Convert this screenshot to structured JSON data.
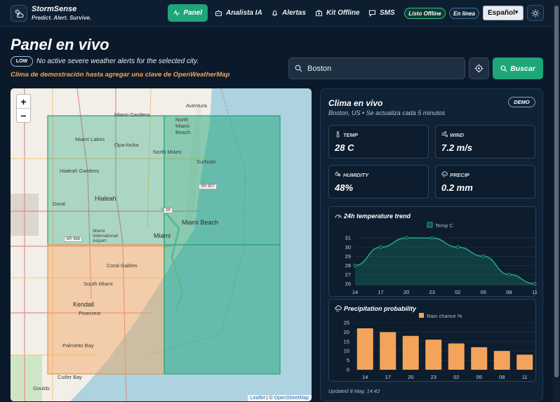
{
  "app": {
    "name": "StormSense",
    "tagline": "Predict. Alert. Survive."
  },
  "nav": {
    "items": [
      {
        "label": "Panel",
        "icon": "pulse-icon",
        "active": true
      },
      {
        "label": "Analista IA",
        "icon": "robot-icon"
      },
      {
        "label": "Alertas",
        "icon": "bell-icon"
      },
      {
        "label": "Kit Offline",
        "icon": "kit-icon"
      },
      {
        "label": "SMS",
        "icon": "message-icon"
      }
    ],
    "status_offline": "Listo Offline",
    "status_online": "En línea",
    "language": "Español"
  },
  "main": {
    "title": "Panel en vivo",
    "alert_level": "LOW",
    "alert_text": "No active severe weather alerts for the selected city.",
    "demo_note": "Clima de demostración hasta agregar una clave de OpenWeatherMap"
  },
  "search": {
    "value": "Boston",
    "button": "Buscar"
  },
  "map": {
    "attribution_leaflet": "Leaflet",
    "attribution_sep": " | © ",
    "attribution_osm": "OpenStreetMap",
    "labels": [
      {
        "text": "Miami Gardens"
      },
      {
        "text": "Aventura"
      },
      {
        "text": "North Miami Beach"
      },
      {
        "text": "Miami Lakes"
      },
      {
        "text": "Opa-locka"
      },
      {
        "text": "North Miami"
      },
      {
        "text": "Surfside"
      },
      {
        "text": "Hialeah Gardens"
      },
      {
        "text": "Hialeah",
        "big": true
      },
      {
        "text": "Doral"
      },
      {
        "text": "Miami Beach",
        "big": true
      },
      {
        "text": "Miami International Airport"
      },
      {
        "text": "Miami",
        "big": true
      },
      {
        "text": "Coral Gables"
      },
      {
        "text": "South Miami"
      },
      {
        "text": "Kendall",
        "big": true
      },
      {
        "text": "Pinecrest"
      },
      {
        "text": "Palmetto Bay"
      },
      {
        "text": "Cutler Bay"
      },
      {
        "text": "Goulds"
      }
    ],
    "road_labels": [
      "SR 907",
      "SR 968",
      "28"
    ],
    "colors": {
      "water": "#acd3df",
      "land": "#f2efe9",
      "zone_green": "#1fa57a",
      "zone_orange": "#f3a45a"
    }
  },
  "weather": {
    "title": "Clima en vivo",
    "subtitle": "Boston, US • Se actualiza cada 5 minutos",
    "badge": "DEMO",
    "stats": [
      {
        "label": "TEMP",
        "value": "28 C",
        "icon": "thermometer-icon"
      },
      {
        "label": "WIND",
        "value": "7.2 m/s",
        "icon": "wind-icon"
      },
      {
        "label": "HUMIDITY",
        "value": "48%",
        "icon": "droplets-icon"
      },
      {
        "label": "PRECIP",
        "value": "0.2 mm",
        "icon": "cloud-rain-icon"
      }
    ],
    "temp_chart_title": "24h temperature trend",
    "precip_chart_title": "Precipitation probability",
    "updated": "Updated 8 May, 14:42"
  },
  "chart_data": [
    {
      "type": "area",
      "title": "24h temperature trend",
      "categories": [
        "14",
        "17",
        "20",
        "23",
        "02",
        "05",
        "08",
        "11"
      ],
      "series": [
        {
          "name": "Temp C",
          "values": [
            28,
            30,
            31,
            31,
            30,
            29,
            27,
            26
          ]
        }
      ],
      "yticks": [
        31,
        30,
        29,
        28,
        27,
        26
      ],
      "ylim": [
        25.8,
        31.4
      ],
      "color": "#1fa57a",
      "legend": "top"
    },
    {
      "type": "bar",
      "title": "Precipitation probability",
      "categories": [
        "14",
        "17",
        "20",
        "23",
        "02",
        "05",
        "08",
        "11"
      ],
      "series": [
        {
          "name": "Rain chance %",
          "values": [
            22,
            20,
            18,
            16,
            14,
            12,
            10,
            8
          ]
        }
      ],
      "yticks": [
        25,
        20,
        15,
        10,
        5,
        0
      ],
      "ylim": [
        0,
        25
      ],
      "color": "#f3a45a",
      "legend": "top"
    }
  ]
}
